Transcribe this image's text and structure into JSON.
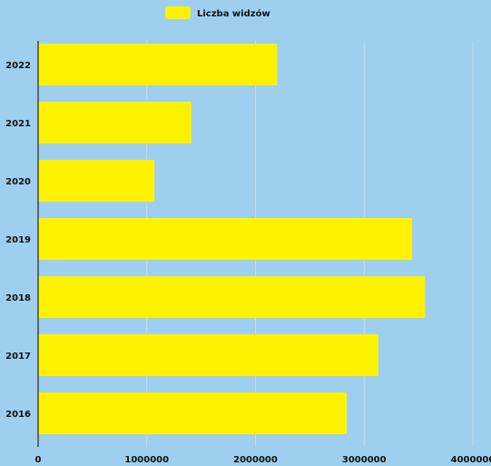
{
  "chart_data": {
    "type": "bar",
    "orientation": "horizontal",
    "categories": [
      "2022",
      "2021",
      "2020",
      "2019",
      "2018",
      "2017",
      "2016"
    ],
    "series": [
      {
        "name": "Liczba widzów",
        "values": [
          2200000,
          1410000,
          1070000,
          3440000,
          3560000,
          3130000,
          2840000
        ]
      }
    ],
    "title": "",
    "xlabel": "",
    "ylabel": "",
    "xlim": [
      0,
      4000000
    ],
    "xticks": [
      "0",
      "1000000",
      "2000000",
      "3000000",
      "4000000"
    ],
    "grid": "vertical",
    "legend_position": "top"
  },
  "colors": {
    "background": "#9ecfef",
    "bar": "#fff200",
    "grid": "#c8dbe8",
    "axis": "#444444"
  }
}
